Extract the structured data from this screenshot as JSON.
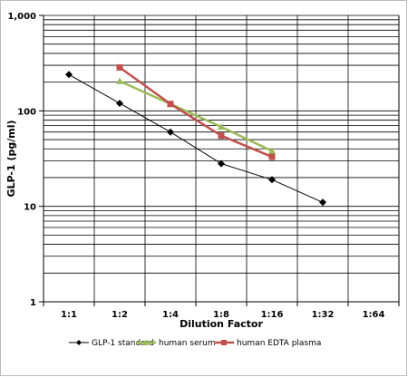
{
  "chart_data": {
    "type": "line",
    "xlabel": "Dilution Factor",
    "ylabel": "GLP-1 (pg/ml)",
    "categories": [
      "1:1",
      "1:2",
      "1:4",
      "1:8",
      "1:16",
      "1:32",
      "1:64"
    ],
    "y_scale": "log",
    "ylim": [
      1,
      1000
    ],
    "y_tick_labels": [
      "1",
      "10",
      "100",
      "1,000"
    ],
    "grid": true,
    "legend_position": "bottom",
    "series": [
      {
        "name": "GLP-1 standard",
        "color": "#000000",
        "marker": "diamond",
        "values": [
          240,
          120,
          60,
          28,
          19,
          11,
          null
        ]
      },
      {
        "name": "human serum",
        "color": "#9BBB59",
        "marker": "triangle",
        "values": [
          null,
          205,
          118,
          68,
          38,
          null,
          null
        ]
      },
      {
        "name": "human EDTA plasma",
        "color": "#C0504D",
        "marker": "square",
        "values": [
          null,
          285,
          118,
          55,
          33,
          null,
          null
        ]
      }
    ]
  }
}
